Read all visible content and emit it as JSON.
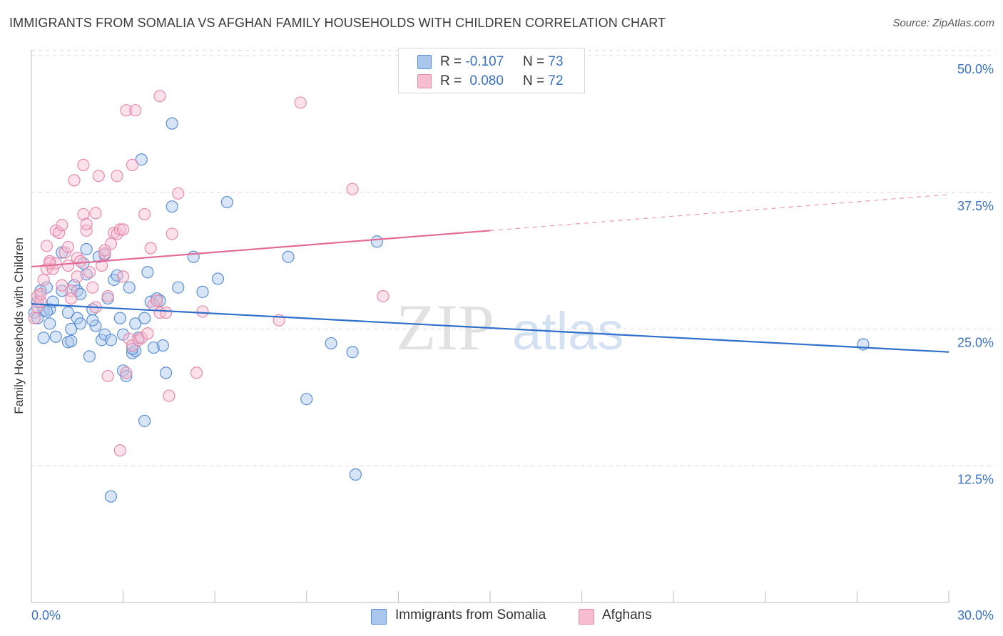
{
  "header": {
    "title": "IMMIGRANTS FROM SOMALIA VS AFGHAN FAMILY HOUSEHOLDS WITH CHILDREN CORRELATION CHART",
    "source": "Source: ZipAtlas.com"
  },
  "legend_top": {
    "rows": [
      {
        "r_label": "R =",
        "r_value": "-0.107",
        "n_label": "N =",
        "n_value": "73"
      },
      {
        "r_label": "R =",
        "r_value": "0.080",
        "n_label": "N =",
        "n_value": "72"
      }
    ]
  },
  "legend_bottom": {
    "items": [
      "Immigrants from Somalia",
      "Afghans"
    ]
  },
  "watermark": {
    "zip": "ZIP",
    "atlas": "atlas"
  },
  "colors": {
    "blue_fill": "#a9c6ec",
    "blue_stroke": "#5b8fd6",
    "blue_line": "#2f6fcc",
    "pink_fill": "#f6bcd0",
    "pink_stroke": "#e889ab",
    "pink_line": "#e36a97",
    "grid": "#d9d9d9",
    "tick_text": "#3a72c6"
  },
  "chart_data": {
    "type": "scatter",
    "title": "IMMIGRANTS FROM SOMALIA VS AFGHAN FAMILY HOUSEHOLDS WITH CHILDREN CORRELATION CHART",
    "xlabel": "",
    "ylabel": "Family Households with Children",
    "xlim": [
      0,
      30
    ],
    "ylim": [
      0,
      52
    ],
    "x_tick_labels": [
      "0.0%",
      "30.0%"
    ],
    "y_ticks": [
      12.5,
      25.0,
      37.5,
      50.0
    ],
    "y_tick_labels": [
      "12.5%",
      "25.0%",
      "37.5%",
      "50.0%"
    ],
    "grid": true,
    "legend_position": "top-center",
    "series": [
      {
        "name": "Immigrants from Somalia",
        "r": -0.107,
        "n": 73,
        "trend": {
          "x": [
            0,
            30
          ],
          "y": [
            27.3,
            22.9
          ],
          "solid_to": 30
        },
        "points": [
          [
            0.1,
            26.5
          ],
          [
            0.2,
            27.5
          ],
          [
            0.3,
            28.5
          ],
          [
            0.4,
            26.7
          ],
          [
            0.4,
            24.2
          ],
          [
            0.5,
            28.8
          ],
          [
            0.6,
            26.8
          ],
          [
            0.6,
            25.5
          ],
          [
            0.7,
            27.5
          ],
          [
            0.8,
            24.3
          ],
          [
            1.0,
            28.5
          ],
          [
            1.0,
            32.0
          ],
          [
            1.2,
            23.8
          ],
          [
            1.2,
            26.5
          ],
          [
            1.3,
            25.0
          ],
          [
            1.4,
            29.0
          ],
          [
            1.5,
            26.0
          ],
          [
            1.5,
            28.5
          ],
          [
            1.6,
            25.5
          ],
          [
            1.7,
            31.0
          ],
          [
            1.8,
            32.3
          ],
          [
            1.8,
            30.0
          ],
          [
            1.9,
            22.5
          ],
          [
            2.0,
            26.8
          ],
          [
            2.1,
            25.3
          ],
          [
            2.2,
            31.6
          ],
          [
            2.3,
            24.0
          ],
          [
            2.4,
            24.5
          ],
          [
            2.4,
            31.8
          ],
          [
            2.5,
            27.8
          ],
          [
            2.6,
            24.0
          ],
          [
            2.7,
            29.5
          ],
          [
            2.8,
            29.9
          ],
          [
            2.9,
            26.0
          ],
          [
            3.0,
            24.5
          ],
          [
            3.0,
            21.2
          ],
          [
            3.1,
            20.7
          ],
          [
            3.2,
            28.8
          ],
          [
            3.3,
            22.8
          ],
          [
            3.4,
            25.5
          ],
          [
            3.4,
            23.0
          ],
          [
            3.5,
            24.2
          ],
          [
            3.6,
            40.5
          ],
          [
            3.7,
            26.0
          ],
          [
            3.7,
            16.6
          ],
          [
            3.8,
            30.2
          ],
          [
            3.9,
            27.5
          ],
          [
            4.0,
            23.3
          ],
          [
            4.1,
            27.8
          ],
          [
            4.2,
            27.6
          ],
          [
            4.3,
            23.5
          ],
          [
            4.4,
            21.0
          ],
          [
            4.6,
            43.8
          ],
          [
            4.6,
            36.2
          ],
          [
            4.8,
            28.8
          ],
          [
            5.3,
            31.6
          ],
          [
            5.6,
            28.4
          ],
          [
            6.1,
            29.6
          ],
          [
            6.4,
            36.6
          ],
          [
            8.4,
            31.6
          ],
          [
            9.0,
            18.6
          ],
          [
            9.8,
            23.7
          ],
          [
            10.5,
            22.9
          ],
          [
            10.6,
            11.7
          ],
          [
            11.3,
            33.0
          ],
          [
            27.2,
            23.6
          ],
          [
            2.6,
            9.7
          ],
          [
            1.3,
            23.9
          ],
          [
            2.0,
            25.8
          ],
          [
            0.5,
            26.6
          ],
          [
            0.2,
            26.0
          ],
          [
            3.3,
            23.2
          ],
          [
            1.6,
            28.2
          ]
        ]
      },
      {
        "name": "Afghans",
        "r": 0.08,
        "n": 72,
        "trend": {
          "x": [
            0,
            30
          ],
          "y": [
            30.7,
            37.3
          ],
          "solid_to": 15
        },
        "points": [
          [
            0.1,
            26.0
          ],
          [
            0.2,
            27.0
          ],
          [
            0.2,
            28.0
          ],
          [
            0.3,
            27.5
          ],
          [
            0.4,
            29.5
          ],
          [
            0.5,
            30.5
          ],
          [
            0.5,
            32.6
          ],
          [
            0.6,
            31.2
          ],
          [
            0.7,
            30.5
          ],
          [
            0.8,
            34.0
          ],
          [
            0.8,
            31.0
          ],
          [
            0.9,
            33.8
          ],
          [
            1.0,
            34.5
          ],
          [
            1.0,
            29.0
          ],
          [
            1.1,
            32.0
          ],
          [
            1.2,
            32.5
          ],
          [
            1.3,
            28.5
          ],
          [
            1.3,
            27.8
          ],
          [
            1.4,
            38.6
          ],
          [
            1.5,
            31.5
          ],
          [
            1.6,
            31.2
          ],
          [
            1.7,
            35.5
          ],
          [
            1.7,
            40.0
          ],
          [
            1.8,
            34.0
          ],
          [
            1.8,
            34.6
          ],
          [
            1.9,
            30.2
          ],
          [
            2.0,
            28.8
          ],
          [
            2.1,
            27.0
          ],
          [
            2.1,
            35.6
          ],
          [
            2.2,
            39.0
          ],
          [
            2.3,
            30.8
          ],
          [
            2.4,
            31.9
          ],
          [
            2.5,
            28.0
          ],
          [
            2.5,
            20.7
          ],
          [
            2.6,
            32.8
          ],
          [
            2.7,
            33.8
          ],
          [
            2.8,
            33.7
          ],
          [
            2.8,
            39.0
          ],
          [
            2.9,
            34.1
          ],
          [
            2.9,
            13.9
          ],
          [
            3.0,
            29.8
          ],
          [
            3.1,
            45.0
          ],
          [
            3.1,
            21.0
          ],
          [
            3.2,
            24.1
          ],
          [
            3.3,
            23.5
          ],
          [
            3.3,
            40.0
          ],
          [
            3.4,
            45.0
          ],
          [
            3.5,
            24.0
          ],
          [
            3.6,
            24.2
          ],
          [
            3.7,
            35.5
          ],
          [
            3.8,
            24.6
          ],
          [
            3.9,
            32.4
          ],
          [
            4.0,
            27.2
          ],
          [
            4.1,
            27.6
          ],
          [
            4.2,
            26.5
          ],
          [
            4.2,
            46.3
          ],
          [
            4.4,
            26.5
          ],
          [
            4.5,
            18.9
          ],
          [
            4.6,
            33.7
          ],
          [
            4.8,
            37.4
          ],
          [
            5.4,
            21.0
          ],
          [
            5.6,
            26.6
          ],
          [
            8.1,
            25.8
          ],
          [
            8.8,
            45.7
          ],
          [
            10.5,
            37.8
          ],
          [
            11.5,
            28.0
          ],
          [
            0.3,
            28.2
          ],
          [
            1.2,
            30.8
          ],
          [
            0.6,
            31.0
          ],
          [
            2.4,
            32.2
          ],
          [
            1.5,
            29.8
          ],
          [
            3.0,
            34.1
          ]
        ]
      }
    ]
  }
}
